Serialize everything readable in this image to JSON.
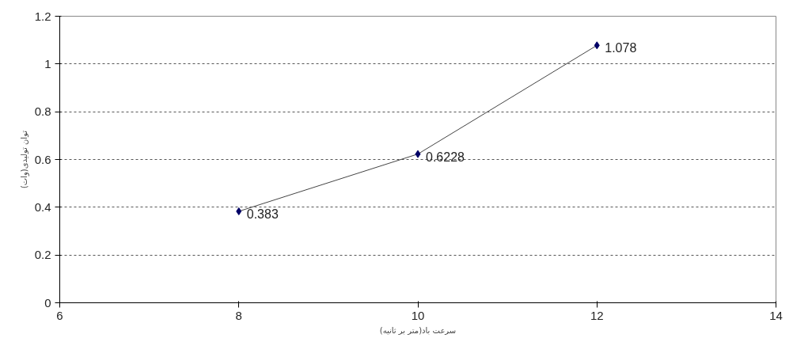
{
  "chart_data": {
    "type": "line",
    "xlabel": "سرعت باد(متر بر ثانیه)",
    "ylabel": "توان تولیدی(وات)",
    "x": [
      8,
      10,
      12
    ],
    "series": [
      {
        "color": "#000066",
        "values": [
          0.383,
          0.6228,
          1.078
        ]
      }
    ],
    "xlim": [
      6,
      14
    ],
    "xticks": [
      6,
      8,
      10,
      12,
      14
    ],
    "ylim": [
      0,
      1.2
    ],
    "yticks": [
      0,
      0.2,
      0.4,
      0.6,
      0.8,
      1,
      1.2
    ],
    "grid": "y",
    "marker": "diamond",
    "line_style": "solid",
    "data_labels": true
  }
}
